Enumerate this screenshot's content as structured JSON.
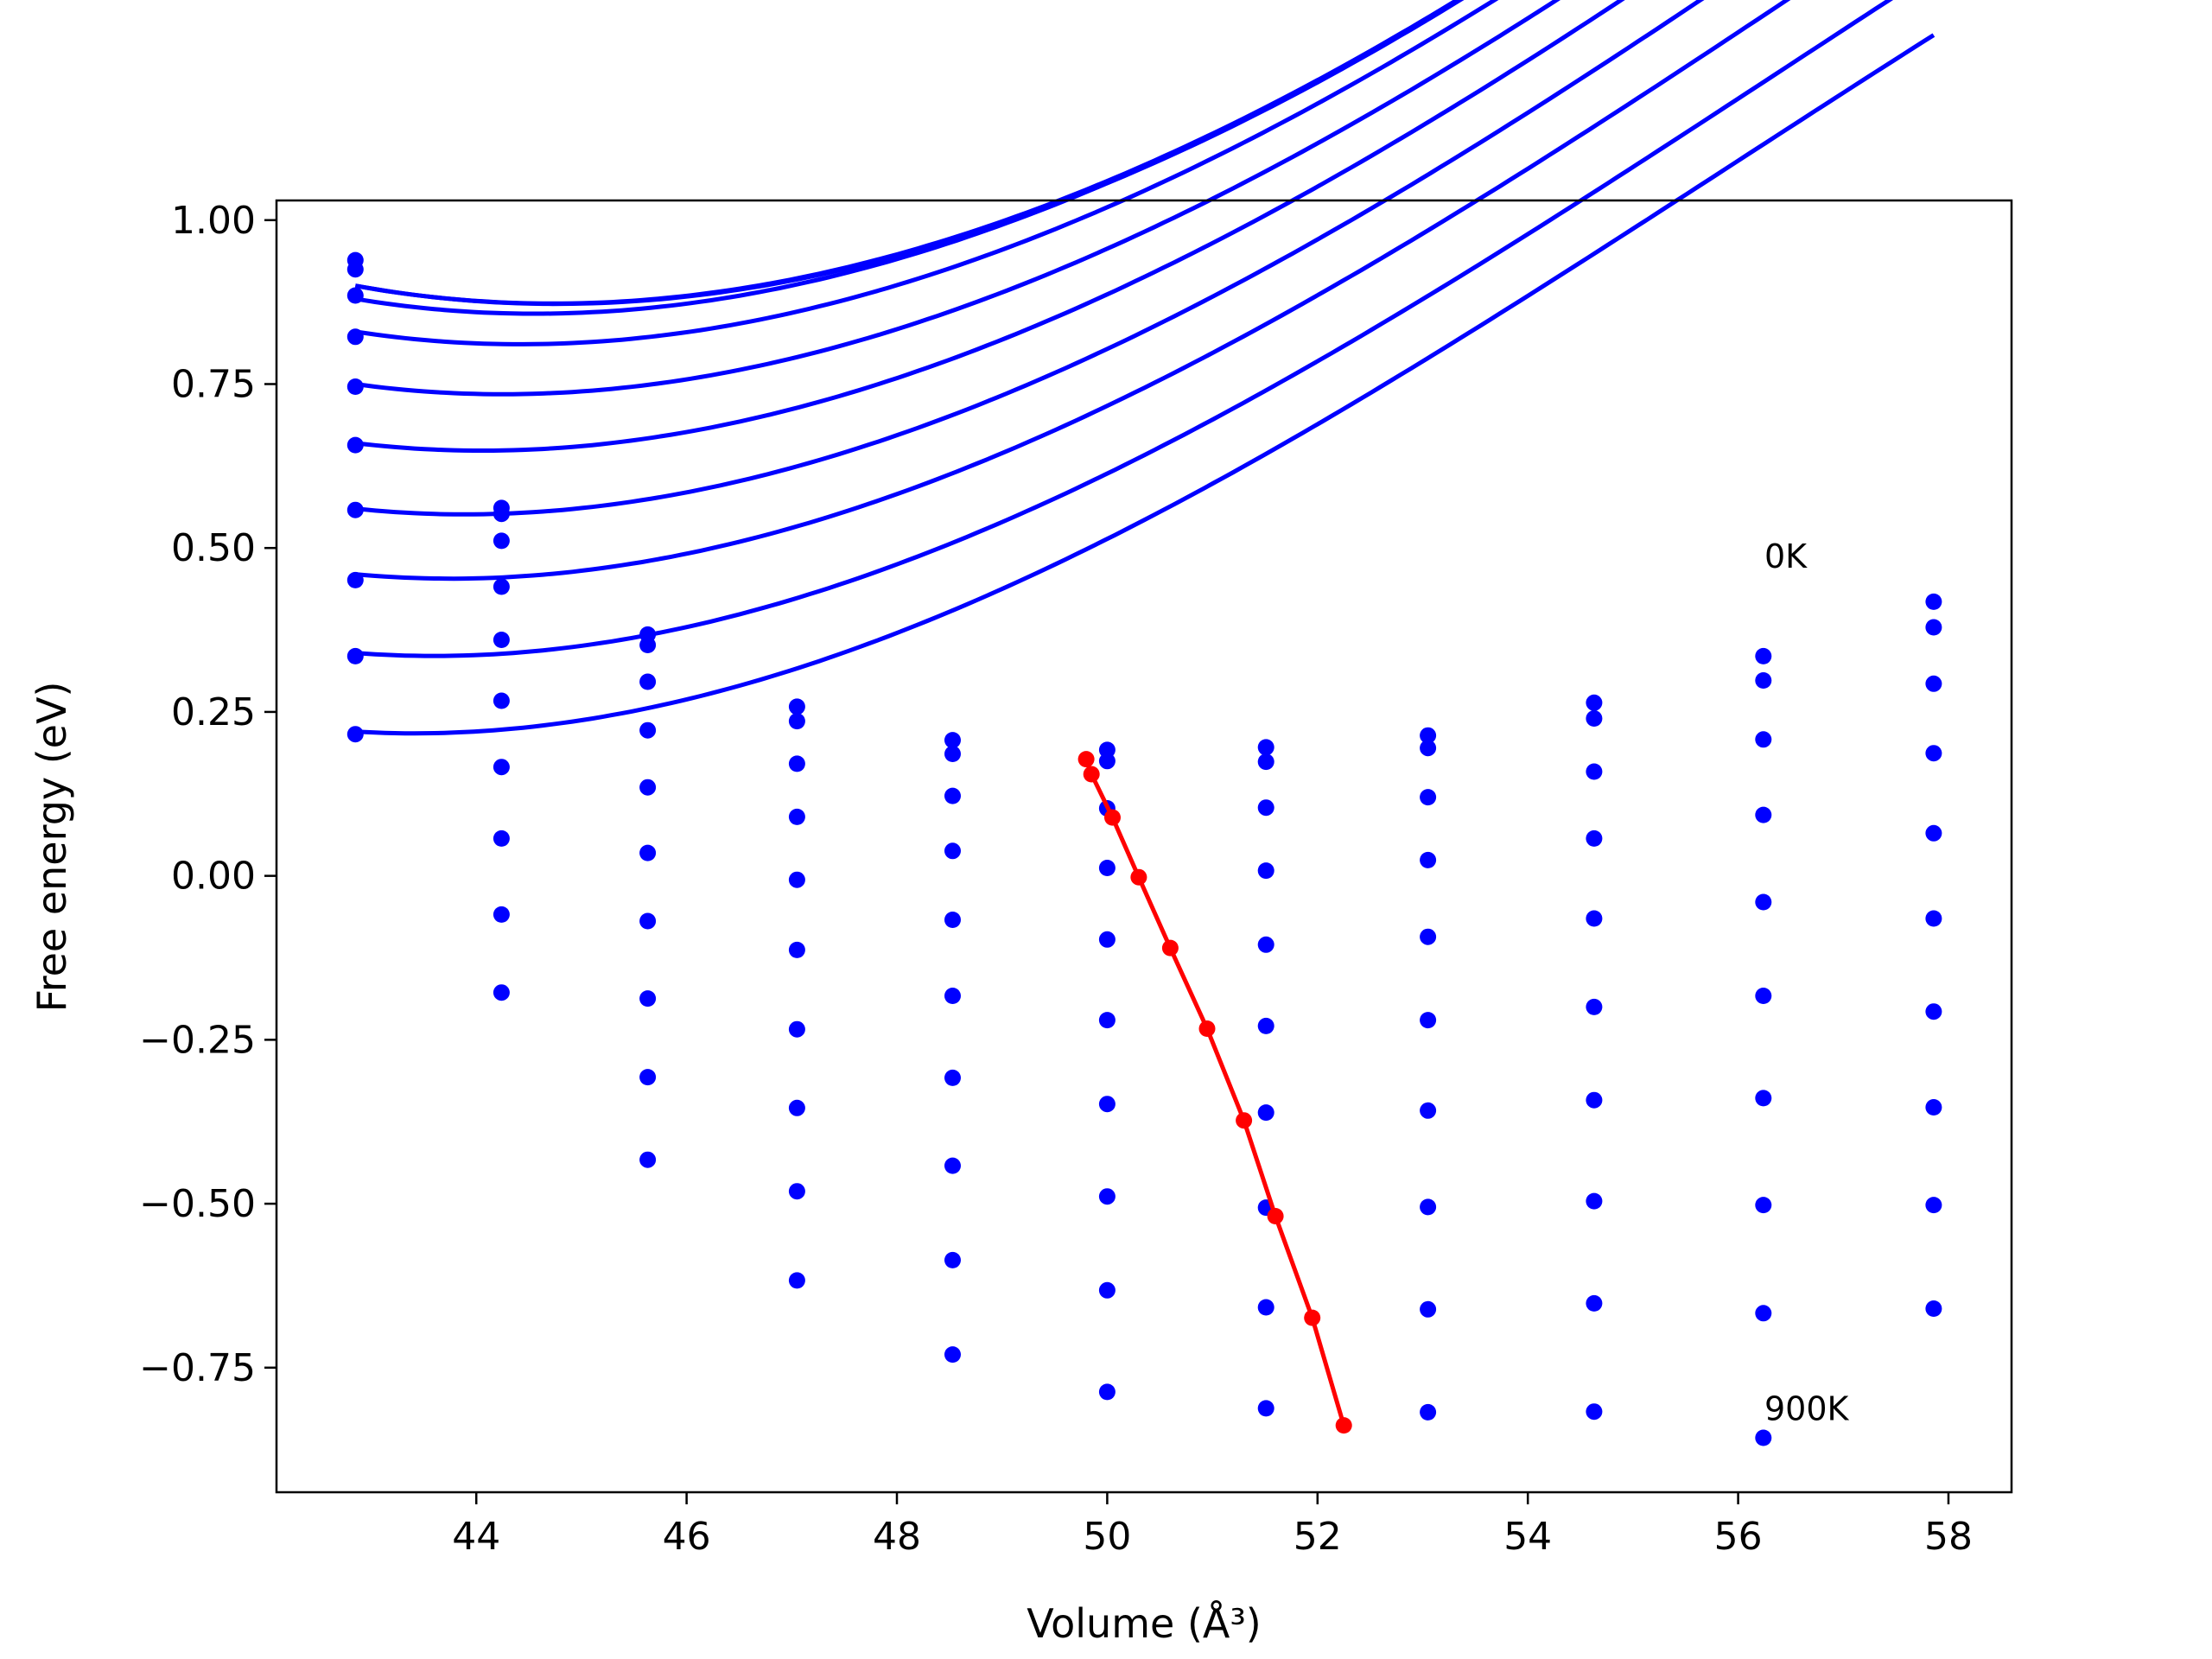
{
  "chart_data": {
    "type": "line",
    "xlabel": "Volume (Å³)",
    "ylabel": "Free energy (eV)",
    "xlim": [
      42.1,
      58.6
    ],
    "ylim": [
      -0.94,
      1.03
    ],
    "xticks": [
      44,
      46,
      48,
      50,
      52,
      54,
      56,
      58
    ],
    "yticks": [
      -0.75,
      -0.5,
      -0.25,
      0.0,
      0.25,
      0.5,
      0.75,
      1.0
    ],
    "ytick_labels": [
      "−0.75",
      "−0.50",
      "−0.25",
      "0.00",
      "0.25",
      "0.50",
      "0.75",
      "1.00"
    ],
    "grid": false,
    "x_points": [
      42.85,
      44.24,
      45.63,
      47.05,
      48.53,
      50.0,
      51.51,
      53.05,
      54.63,
      56.24,
      57.86
    ],
    "annotations": [
      {
        "text": "0K",
        "x": 56.25,
        "y": 0.47
      },
      {
        "text": "900K",
        "x": 56.25,
        "y": -0.83
      }
    ],
    "line_color": "#0000ff",
    "min_line_color": "#ff0000",
    "series": [
      {
        "fit": [
          0.9,
          -0.0295,
          0.0081,
          -0.000128,
          49.8
        ],
        "values": [
          0.939,
          0.561,
          0.368,
          0.258,
          0.207,
          0.192,
          0.196,
          0.214,
          0.264,
          0.335,
          0.418
        ]
      },
      {
        "fit": [
          0.9,
          -0.0295,
          0.00825,
          -0.00014,
          49.85
        ],
        "values": [
          0.925,
          0.552,
          0.352,
          0.236,
          0.186,
          0.175,
          0.174,
          0.195,
          0.24,
          0.298,
          0.379
        ]
      },
      {
        "fit": [
          0.88,
          -0.027,
          0.0083,
          -0.00015,
          50.05
        ],
        "values": [
          0.885,
          0.511,
          0.296,
          0.171,
          0.122,
          0.103,
          0.104,
          0.12,
          0.159,
          0.208,
          0.293
        ]
      },
      {
        "fit": [
          0.83,
          -0.025,
          0.00835,
          -0.00016,
          50.3
        ],
        "values": [
          0.822,
          0.441,
          0.222,
          0.09,
          0.038,
          0.012,
          0.008,
          0.024,
          0.057,
          0.093,
          0.187
        ]
      },
      {
        "fit": [
          0.75,
          -0.0225,
          0.0084,
          -0.00017,
          50.6
        ],
        "values": [
          0.746,
          0.36,
          0.135,
          -0.006,
          -0.067,
          -0.097,
          -0.105,
          -0.093,
          -0.065,
          -0.04,
          0.065
        ]
      },
      {
        "fit": [
          0.66,
          -0.0195,
          0.00845,
          -0.00018,
          50.95
        ],
        "values": [
          0.657,
          0.267,
          0.035,
          -0.113,
          -0.183,
          -0.22,
          -0.229,
          -0.22,
          -0.2,
          -0.183,
          -0.065
        ]
      },
      {
        "fit": [
          0.56,
          -0.017,
          0.0085,
          -0.00019,
          51.3
        ],
        "values": [
          0.558,
          0.166,
          -0.069,
          -0.234,
          -0.308,
          -0.348,
          -0.361,
          -0.358,
          -0.342,
          -0.339,
          -0.207
        ]
      },
      {
        "fit": [
          0.46,
          -0.015,
          0.00855,
          -0.0002,
          51.6
        ],
        "values": [
          0.451,
          0.057,
          -0.187,
          -0.354,
          -0.442,
          -0.489,
          -0.506,
          -0.505,
          -0.496,
          -0.502,
          -0.353
        ]
      },
      {
        "fit": [
          0.34,
          -0.0125,
          0.0086,
          -0.00021,
          51.95
        ],
        "values": [
          0.335,
          -0.059,
          -0.307,
          -0.481,
          -0.586,
          -0.632,
          -0.658,
          -0.661,
          -0.652,
          -0.667,
          -0.502
        ]
      },
      {
        "fit": [
          0.22,
          -0.0095,
          0.00865,
          -0.00022,
          52.25
        ],
        "values": [
          0.216,
          -0.178,
          -0.433,
          -0.617,
          -0.73,
          -0.787,
          -0.812,
          -0.818,
          -0.817,
          -0.857,
          -0.66
        ]
      }
    ],
    "minima": {
      "x": [
        49.8,
        49.85,
        50.05,
        50.3,
        50.6,
        50.95,
        51.3,
        51.6,
        51.95,
        52.25
      ],
      "y": [
        0.178,
        0.155,
        0.089,
        -0.002,
        -0.11,
        -0.233,
        -0.373,
        -0.519,
        -0.674,
        -0.838
      ]
    }
  }
}
